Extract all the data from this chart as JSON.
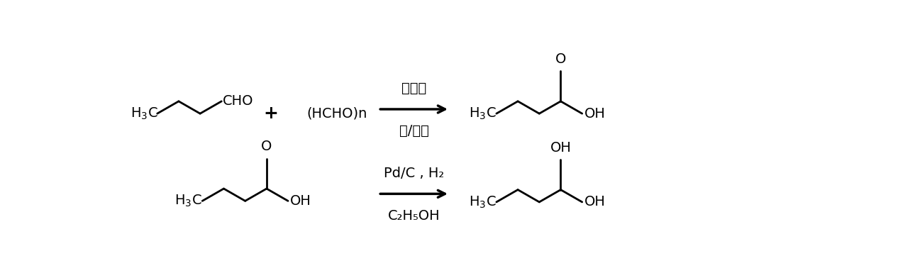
{
  "bg_color": "#ffffff",
  "fig_width": 12.9,
  "fig_height": 3.85,
  "dpi": 100,
  "above_arrow1": "催化剂",
  "below_arrow1": "碱/溶剂",
  "above_arrow2": "Pd/C , H₂",
  "below_arrow2": "C₂H₅OH",
  "lw": 2.0,
  "fs_label": 14,
  "fs_text": 13
}
